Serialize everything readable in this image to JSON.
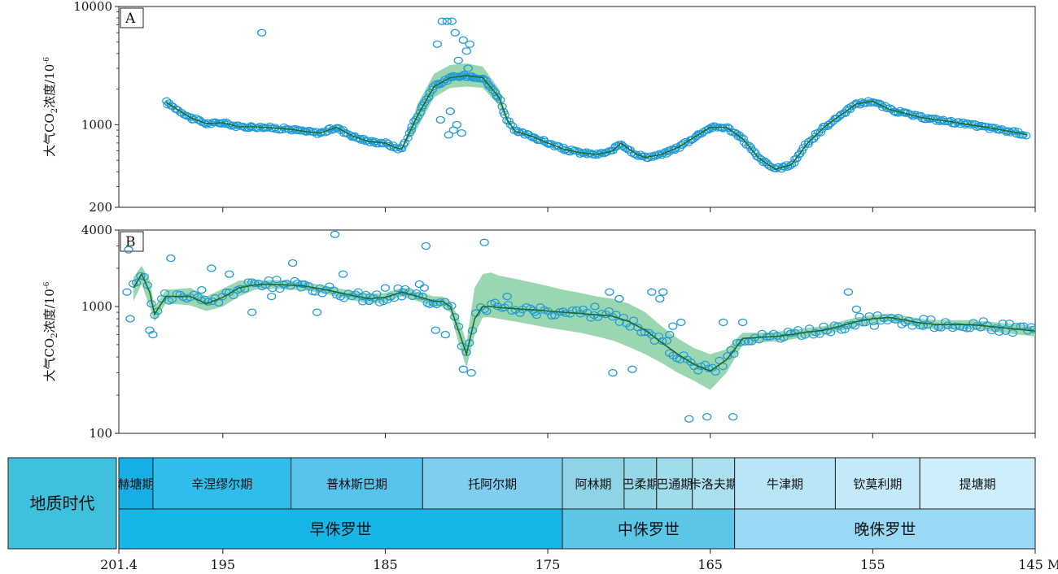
{
  "ylabel_main": "大气CO",
  "ylabel_sub": "2",
  "ylabel_tail": "浓度/10",
  "ylabel_sup": "-6",
  "colors": {
    "point": "#1f9bd6",
    "line": "#1f6b2e",
    "band": "#8fd1a6",
    "epoch_early": "#17b6e8",
    "epoch_middle": "#5bc6e6",
    "epoch_late": "#99d9f6",
    "geo_label_cell": "#3fc0dd"
  },
  "timescale": {
    "label": "地质时代",
    "epochs": [
      {
        "name": "早侏罗世",
        "start": 201.4,
        "end": 174.1
      },
      {
        "name": "中侏罗世",
        "start": 174.1,
        "end": 163.5
      },
      {
        "name": "晚侏罗世",
        "start": 163.5,
        "end": 145.0
      }
    ],
    "stages": [
      {
        "name": "赫塘期",
        "start": 201.4,
        "end": 199.3,
        "color": "#17aee6"
      },
      {
        "name": "辛涅缪尔期",
        "start": 199.3,
        "end": 190.8,
        "color": "#2fbde9"
      },
      {
        "name": "普林斯巴期",
        "start": 190.8,
        "end": 182.7,
        "color": "#56c4ec"
      },
      {
        "name": "托阿尔期",
        "start": 182.7,
        "end": 174.1,
        "color": "#7fcdef"
      },
      {
        "name": "阿林期",
        "start": 174.1,
        "end": 170.3,
        "color": "#8fd4e6"
      },
      {
        "name": "巴柔期",
        "start": 170.3,
        "end": 168.3,
        "color": "#97d8e8"
      },
      {
        "name": "巴通期",
        "start": 168.3,
        "end": 166.1,
        "color": "#a1dcec"
      },
      {
        "name": "卡洛夫期",
        "start": 166.1,
        "end": 163.5,
        "color": "#abe0ee"
      },
      {
        "name": "牛津期",
        "start": 163.5,
        "end": 157.3,
        "color": "#b9e6f7"
      },
      {
        "name": "钦莫利期",
        "start": 157.3,
        "end": 152.1,
        "color": "#c4eaf9"
      },
      {
        "name": "提塘期",
        "start": 152.1,
        "end": 145.0,
        "color": "#cdeefa"
      }
    ],
    "xticks": [
      "201.4",
      "195",
      "185",
      "175",
      "165",
      "155",
      "145 Ma"
    ],
    "xtick_values": [
      201.4,
      195,
      185,
      175,
      165,
      155,
      145
    ]
  },
  "chart_data": [
    {
      "type": "scatter",
      "panel_label": "A",
      "x_reversed": true,
      "xlim": [
        201.4,
        145
      ],
      "ylim": [
        200,
        10000
      ],
      "log_y": true,
      "yticks": [
        200,
        1000,
        10000
      ],
      "ytick_labels": [
        "200",
        "1000",
        "10000"
      ],
      "xticks": [
        195,
        185,
        175,
        165,
        155,
        145
      ],
      "series": [
        {
          "kind": "trend",
          "x": [
            198.5,
            197,
            196,
            195,
            194,
            193,
            192,
            191,
            190,
            189,
            188,
            187,
            186,
            185,
            184.5,
            184,
            183,
            182,
            181,
            180,
            179,
            178,
            177.5,
            177,
            176,
            175,
            174,
            173,
            172,
            171,
            170.5,
            170,
            169.5,
            169,
            168,
            167,
            166,
            165,
            164,
            163,
            162,
            161,
            160,
            159,
            158,
            157,
            156,
            155,
            154,
            152,
            150,
            148,
            146,
            145.5
          ],
          "y": [
            1550,
            1150,
            1020,
            1040,
            960,
            960,
            940,
            920,
            880,
            850,
            950,
            800,
            720,
            700,
            650,
            620,
            1200,
            2100,
            2500,
            2600,
            2500,
            1700,
            1100,
            880,
            800,
            700,
            620,
            580,
            560,
            600,
            700,
            620,
            560,
            530,
            560,
            640,
            780,
            950,
            950,
            760,
            520,
            420,
            460,
            700,
            950,
            1200,
            1500,
            1580,
            1350,
            1150,
            1050,
            950,
            850,
            820
          ],
          "band_upper": [
            1550,
            1150,
            1020,
            1040,
            960,
            960,
            940,
            920,
            880,
            850,
            950,
            800,
            720,
            700,
            650,
            620,
            1500,
            2700,
            3200,
            3300,
            3100,
            2000,
            1150,
            880,
            800,
            700,
            620,
            580,
            560,
            600,
            700,
            620,
            560,
            530,
            560,
            640,
            780,
            950,
            950,
            760,
            520,
            420,
            460,
            700,
            950,
            1200,
            1500,
            1580,
            1350,
            1150,
            1050,
            950,
            850,
            820
          ],
          "band_lower": [
            1550,
            1150,
            1020,
            1040,
            960,
            960,
            940,
            920,
            880,
            850,
            950,
            800,
            720,
            700,
            650,
            620,
            950,
            1700,
            2050,
            2100,
            2050,
            1450,
            1050,
            880,
            800,
            700,
            620,
            580,
            560,
            600,
            700,
            620,
            560,
            530,
            560,
            640,
            780,
            950,
            950,
            760,
            520,
            420,
            460,
            700,
            950,
            1200,
            1500,
            1580,
            1350,
            1150,
            1050,
            950,
            850,
            820
          ]
        },
        {
          "kind": "points",
          "x": [
            192.6,
            181.5,
            181.2,
            180.9,
            180.7,
            181.8,
            180.2,
            179.8,
            180.0,
            180.5,
            181.0,
            180.6,
            180.3,
            181.6,
            181.1,
            180.8,
            179.9,
            179.5
          ],
          "y": [
            6000,
            7500,
            7500,
            7500,
            6000,
            4800,
            5200,
            4800,
            4200,
            3500,
            1300,
            1000,
            850,
            1100,
            820,
            900,
            3000,
            2500
          ]
        }
      ]
    },
    {
      "type": "scatter",
      "panel_label": "B",
      "x_reversed": true,
      "xlim": [
        201.4,
        145
      ],
      "ylim": [
        100,
        4000
      ],
      "log_y": true,
      "yticks": [
        100,
        1000,
        4000
      ],
      "ytick_labels": [
        "100",
        "1000",
        "4000"
      ],
      "xticks": [
        195,
        185,
        175,
        165,
        155,
        145
      ],
      "series": [
        {
          "kind": "trend",
          "x": [
            200.5,
            200.0,
            199.5,
            199.2,
            198.5,
            197,
            196,
            195,
            194,
            193,
            192,
            191,
            190,
            189,
            188,
            187,
            186,
            185,
            184,
            183,
            182,
            181.5,
            181,
            180.5,
            180.0,
            179.5,
            179.0,
            178.5,
            178,
            177,
            176,
            175,
            174,
            173,
            172,
            171,
            170,
            169,
            168,
            167,
            166,
            165,
            164,
            163.5,
            163,
            162,
            161,
            160,
            159,
            158,
            157,
            156,
            155,
            154,
            153,
            152,
            151,
            150,
            149,
            148,
            147,
            146,
            145
          ],
          "y": [
            1400,
            1800,
            1300,
            870,
            1200,
            1200,
            1050,
            1180,
            1400,
            1480,
            1500,
            1480,
            1450,
            1380,
            1300,
            1220,
            1150,
            1180,
            1300,
            1200,
            1100,
            1100,
            1000,
            650,
            420,
            800,
            1000,
            1000,
            980,
            960,
            940,
            920,
            900,
            880,
            860,
            840,
            760,
            650,
            520,
            420,
            350,
            310,
            380,
            460,
            560,
            570,
            580,
            600,
            630,
            650,
            700,
            760,
            800,
            820,
            780,
            740,
            720,
            720,
            720,
            700,
            680,
            660,
            640
          ],
          "band_upper": [
            1700,
            2100,
            1600,
            1000,
            1350,
            1400,
            1200,
            1380,
            1600,
            1600,
            1620,
            1600,
            1560,
            1480,
            1400,
            1320,
            1250,
            1280,
            1400,
            1300,
            1200,
            1200,
            1100,
            820,
            520,
            1400,
            1800,
            1850,
            1750,
            1650,
            1550,
            1450,
            1350,
            1280,
            1200,
            1150,
            1050,
            900,
            700,
            560,
            470,
            420,
            460,
            540,
            620,
            620,
            630,
            650,
            680,
            700,
            760,
            820,
            860,
            880,
            840,
            800,
            780,
            780,
            780,
            760,
            740,
            720,
            700
          ],
          "band_lower": [
            1100,
            1500,
            1000,
            760,
            1060,
            1020,
            920,
            1000,
            1200,
            1360,
            1380,
            1360,
            1340,
            1280,
            1200,
            1120,
            1050,
            1080,
            1200,
            1100,
            1000,
            1000,
            900,
            520,
            330,
            600,
            820,
            820,
            800,
            760,
            720,
            680,
            650,
            620,
            580,
            540,
            480,
            420,
            360,
            300,
            260,
            220,
            300,
            390,
            500,
            520,
            530,
            550,
            580,
            600,
            640,
            700,
            740,
            760,
            720,
            680,
            660,
            660,
            660,
            640,
            620,
            600,
            580
          ]
        },
        {
          "kind": "points",
          "x": [
            200.9,
            200.7,
            200.8,
            199.5,
            199.3,
            198.2,
            196.3,
            195.7,
            194.6,
            193.2,
            192.0,
            190.7,
            190.1,
            189.2,
            188.1,
            187.6,
            186.4,
            186.0,
            185.0,
            183.9,
            182.9,
            182.6,
            182.5,
            181.9,
            181.3,
            180.2,
            179.7,
            178.9,
            177.5,
            175.8,
            171.0,
            168.6,
            168.1,
            167.9,
            167.3,
            166.8,
            165.2,
            166.3,
            163.6,
            163.0,
            164.2,
            172.1,
            169.8,
            170.6,
            171.2,
            167.5,
            156.5,
            156.0,
            154.9,
            151.9
          ],
          "y": [
            1300,
            800,
            2800,
            650,
            600,
            2400,
            1350,
            2000,
            1800,
            900,
            1200,
            2200,
            1500,
            900,
            3700,
            1800,
            1200,
            1100,
            1400,
            1300,
            1500,
            1400,
            3000,
            650,
            600,
            320,
            300,
            3200,
            1200,
            900,
            300,
            1300,
            1150,
            1300,
            700,
            750,
            135,
            130,
            135,
            750,
            750,
            1000,
            320,
            1150,
            1300,
            600,
            1300,
            950,
            700,
            700
          ]
        }
      ]
    }
  ]
}
